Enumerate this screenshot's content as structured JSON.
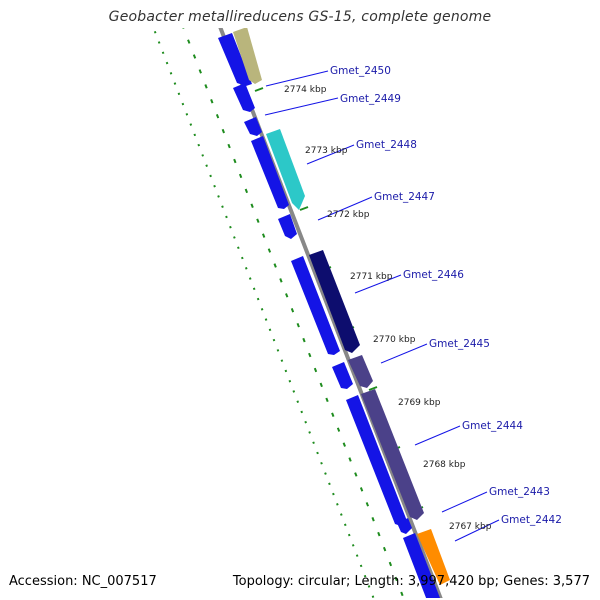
{
  "title": "Geobacter metallireducens GS-15, complete genome",
  "footer": {
    "accession": "Accession: NC_007517",
    "summary": "Topology: circular; Length: 3,997,420 bp; Genes: 3,577"
  },
  "genes": [
    {
      "name": "Gmet_2450"
    },
    {
      "name": "Gmet_2449"
    },
    {
      "name": "Gmet_2448"
    },
    {
      "name": "Gmet_2447"
    },
    {
      "name": "Gmet_2446"
    },
    {
      "name": "Gmet_2445"
    },
    {
      "name": "Gmet_2444"
    },
    {
      "name": "Gmet_2443"
    },
    {
      "name": "Gmet_2442"
    }
  ],
  "scale_ticks": [
    "2774 kbp",
    "2773 kbp",
    "2772 kbp",
    "2771 kbp",
    "2770 kbp",
    "2769 kbp",
    "2768 kbp",
    "2767 kbp"
  ],
  "colors": {
    "backbone": "#888888",
    "forward_gene": "#1414e6",
    "navy_gene": "#0d0d6e",
    "slate_gene": "#4b4189",
    "cyan_gene": "#2cc8c8",
    "khaki_gene": "#b9b57c",
    "orange_gene": "#ff8c00",
    "gc_track": "#1e8c1e",
    "label_color": "#1a1aa8"
  }
}
